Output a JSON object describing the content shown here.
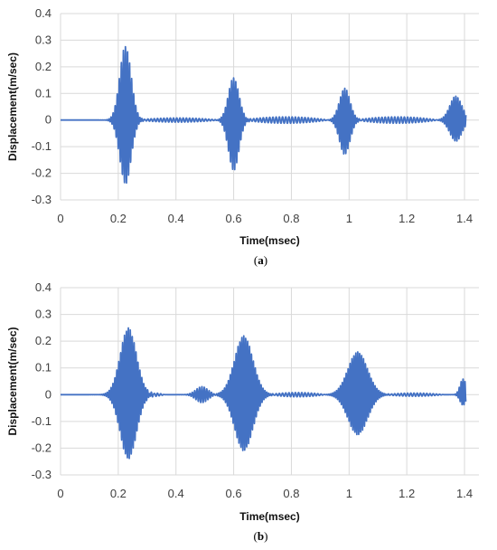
{
  "chart_data": [
    {
      "type": "line",
      "caption_letter": "a",
      "xlabel": "Time(msec)",
      "ylabel": "Displacement(m/sec)",
      "xlim": [
        0,
        1.45
      ],
      "ylim": [
        -0.3,
        0.4
      ],
      "x_ticks": [
        "0",
        "0.2",
        "0.4",
        "0.6",
        "0.8",
        "1",
        "1.2",
        "1.4"
      ],
      "y_ticks": [
        "-0.3",
        "-0.2",
        "-0.1",
        "0",
        "0.1",
        "0.2",
        "0.3",
        "0.4"
      ],
      "grid": true,
      "color": "#4472c4",
      "bursts": [
        {
          "center": 0.225,
          "width": 0.028,
          "max": 0.28,
          "min": -0.24,
          "freq": 140
        },
        {
          "center": 0.6,
          "width": 0.026,
          "max": 0.16,
          "min": -0.19,
          "freq": 140
        },
        {
          "center": 0.985,
          "width": 0.026,
          "max": 0.12,
          "min": -0.13,
          "freq": 140
        },
        {
          "center": 1.37,
          "width": 0.03,
          "max": 0.09,
          "min": -0.08,
          "freq": 140
        }
      ],
      "ripples": [
        {
          "start": 0.26,
          "end": 0.55,
          "amp": 0.008,
          "freq": 90
        },
        {
          "start": 0.63,
          "end": 0.93,
          "amp": 0.012,
          "freq": 90
        },
        {
          "start": 1.02,
          "end": 1.31,
          "amp": 0.012,
          "freq": 90
        }
      ]
    },
    {
      "type": "line",
      "caption_letter": "b",
      "xlabel": "Time(msec)",
      "ylabel": "Displacement(m/sec)",
      "xlim": [
        0,
        1.45
      ],
      "ylim": [
        -0.3,
        0.4
      ],
      "x_ticks": [
        "0",
        "0.2",
        "0.4",
        "0.6",
        "0.8",
        "1",
        "1.2",
        "1.4"
      ],
      "y_ticks": [
        "-0.3",
        "-0.2",
        "-0.1",
        "0",
        "0.1",
        "0.2",
        "0.3",
        "0.4"
      ],
      "grid": true,
      "color": "#4472c4",
      "bursts": [
        {
          "center": 0.235,
          "width": 0.04,
          "max": 0.25,
          "min": -0.24,
          "freq": 150
        },
        {
          "center": 0.49,
          "width": 0.03,
          "max": 0.03,
          "min": -0.03,
          "freq": 120
        },
        {
          "center": 0.635,
          "width": 0.045,
          "max": 0.22,
          "min": -0.21,
          "freq": 150
        },
        {
          "center": 1.03,
          "width": 0.048,
          "max": 0.16,
          "min": -0.15,
          "freq": 150
        },
        {
          "center": 1.395,
          "width": 0.015,
          "max": 0.06,
          "min": -0.04,
          "freq": 150
        }
      ],
      "ripples": [
        {
          "start": 0.29,
          "end": 0.36,
          "amp": 0.006,
          "freq": 90
        },
        {
          "start": 0.72,
          "end": 0.92,
          "amp": 0.008,
          "freq": 90
        },
        {
          "start": 1.12,
          "end": 1.33,
          "amp": 0.006,
          "freq": 90
        }
      ]
    }
  ]
}
